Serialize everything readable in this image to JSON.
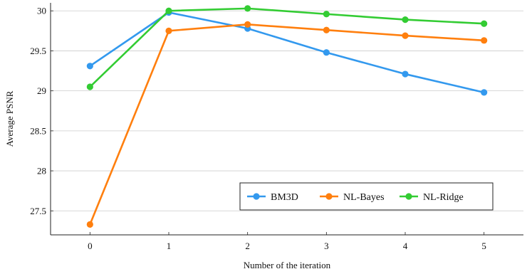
{
  "chart_data": {
    "type": "line",
    "xlabel": "Number of the iteration",
    "ylabel": "Average PSNR",
    "x": [
      0,
      1,
      2,
      3,
      4,
      5
    ],
    "xlim": [
      -0.5,
      5.5
    ],
    "ylim": [
      27.2,
      30.1
    ],
    "x_ticks": [
      "0",
      "1",
      "2",
      "3",
      "4",
      "5"
    ],
    "y_ticks": [
      {
        "value": 27.5,
        "label": "27.5"
      },
      {
        "value": 28,
        "label": "28"
      },
      {
        "value": 28.5,
        "label": "28.5"
      },
      {
        "value": 29,
        "label": "29"
      },
      {
        "value": 29.5,
        "label": "29.5"
      },
      {
        "value": 30,
        "label": "30"
      }
    ],
    "grid": "horizontal",
    "legend_position": "bottom-right",
    "series": [
      {
        "name": "BM3D",
        "color": "#3399ee",
        "values": [
          29.31,
          29.98,
          29.78,
          29.48,
          29.21,
          28.98
        ]
      },
      {
        "name": "NL-Bayes",
        "color": "#ff7f0e",
        "values": [
          27.33,
          29.75,
          29.83,
          29.76,
          29.69,
          29.63
        ]
      },
      {
        "name": "NL-Ridge",
        "color": "#33cc33",
        "values": [
          29.05,
          30.0,
          30.03,
          29.96,
          29.89,
          29.84
        ]
      }
    ]
  }
}
